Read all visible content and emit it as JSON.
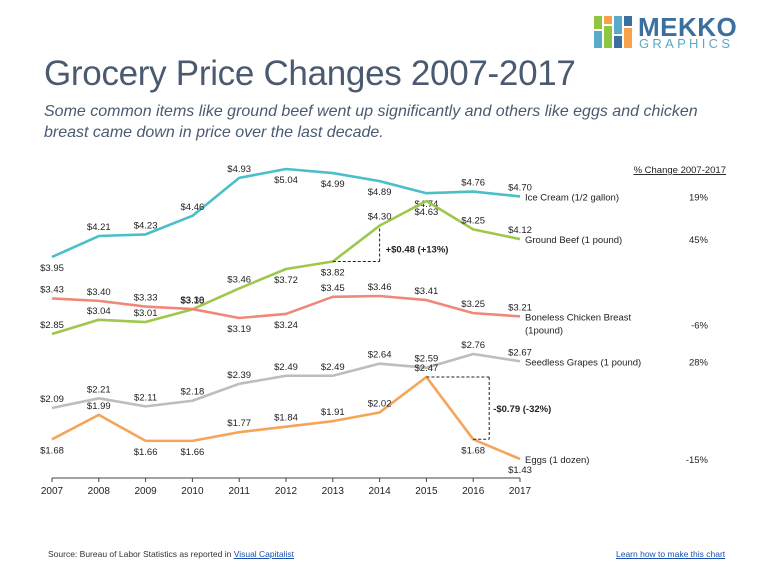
{
  "header": {
    "title": "Grocery Price Changes 2007-2017",
    "subtitle": "Some common items like ground beef went up significantly and others like eggs and chicken breast came down in price over the last decade."
  },
  "logo": {
    "word1": "MEKKO",
    "word2": "GRAPHICS",
    "colors": [
      "#8dc63f",
      "#f7a24b",
      "#5aa9c9",
      "#3a6fa0"
    ]
  },
  "footer": {
    "source_prefix": "Source: Bureau of Labor Statistics as reported in ",
    "source_link": "Visual Capitalist",
    "howto_link": "Learn how to make this chart"
  },
  "chart_data": {
    "type": "line",
    "x": [
      "2007",
      "2008",
      "2009",
      "2010",
      "2011",
      "2012",
      "2013",
      "2014",
      "2015",
      "2016",
      "2017"
    ],
    "change_header": "% Change 2007-2017",
    "series": [
      {
        "id": "ice-cream",
        "name": "Ice Cream (1/2 gallon)",
        "color": "#4bbfc8",
        "change": "19%",
        "values": [
          3.95,
          4.21,
          4.23,
          4.46,
          4.93,
          5.04,
          4.99,
          4.89,
          4.74,
          4.76,
          4.7
        ],
        "labels": [
          "$3.95",
          "$4.21",
          "$4.23",
          "$4.46",
          "$4.93",
          "$5.04",
          "$4.99",
          "$4.89",
          "$4.74",
          "$4.76",
          "$4.70"
        ]
      },
      {
        "id": "ground-beef",
        "name": "Ground Beef (1 pound)",
        "color": "#9dc84b",
        "change": "45%",
        "values": [
          2.85,
          3.04,
          3.01,
          3.18,
          3.46,
          3.72,
          3.82,
          4.3,
          4.63,
          4.25,
          4.12
        ],
        "labels": [
          "$2.85",
          "$3.04",
          "$3.01",
          "$3.18",
          "$3.46",
          "$3.72",
          "$3.82",
          "$4.30",
          "$4.63",
          "$4.25",
          "$4.12"
        ]
      },
      {
        "id": "chicken",
        "name": "Boneless Chicken Breast",
        "name2": "(1pound)",
        "color": "#ef8878",
        "change": "-6%",
        "values": [
          3.43,
          3.4,
          3.33,
          3.3,
          3.19,
          3.24,
          3.45,
          3.46,
          3.41,
          3.25,
          3.21
        ],
        "labels": [
          "$3.43",
          "$3.40",
          "$3.33",
          "$3.30",
          "$3.19",
          "$3.24",
          "$3.45",
          "$3.46",
          "$3.41",
          "$3.25",
          "$3.21"
        ]
      },
      {
        "id": "grapes",
        "name": "Seedless Grapes (1 pound)",
        "color": "#bdbdbd",
        "change": "28%",
        "values": [
          2.09,
          2.21,
          2.11,
          2.18,
          2.39,
          2.49,
          2.49,
          2.64,
          2.59,
          2.76,
          2.67
        ],
        "labels": [
          "$2.09",
          "$2.21",
          "$2.11",
          "$2.18",
          "$2.39",
          "$2.49",
          "$2.49",
          "$2.64",
          "$2.59",
          "$2.76",
          "$2.67"
        ]
      },
      {
        "id": "eggs",
        "name": "Eggs (1 dozen)",
        "color": "#f5a55a",
        "change": "-15%",
        "values": [
          1.68,
          1.99,
          1.66,
          1.66,
          1.77,
          1.84,
          1.91,
          2.02,
          2.47,
          1.68,
          1.43
        ],
        "labels": [
          "$1.68",
          "$1.99",
          "$1.66",
          "$1.66",
          "$1.77",
          "$1.84",
          "$1.91",
          "$2.02",
          "$2.47",
          "$1.68",
          "$1.43"
        ]
      }
    ],
    "annotations": [
      {
        "series": "ground-beef",
        "from": "2013",
        "to": "2014",
        "text": "+$0.48 (+13%)"
      },
      {
        "series": "eggs",
        "from": "2015",
        "to": "2016",
        "text": "-$0.79 (-32%)"
      }
    ]
  }
}
